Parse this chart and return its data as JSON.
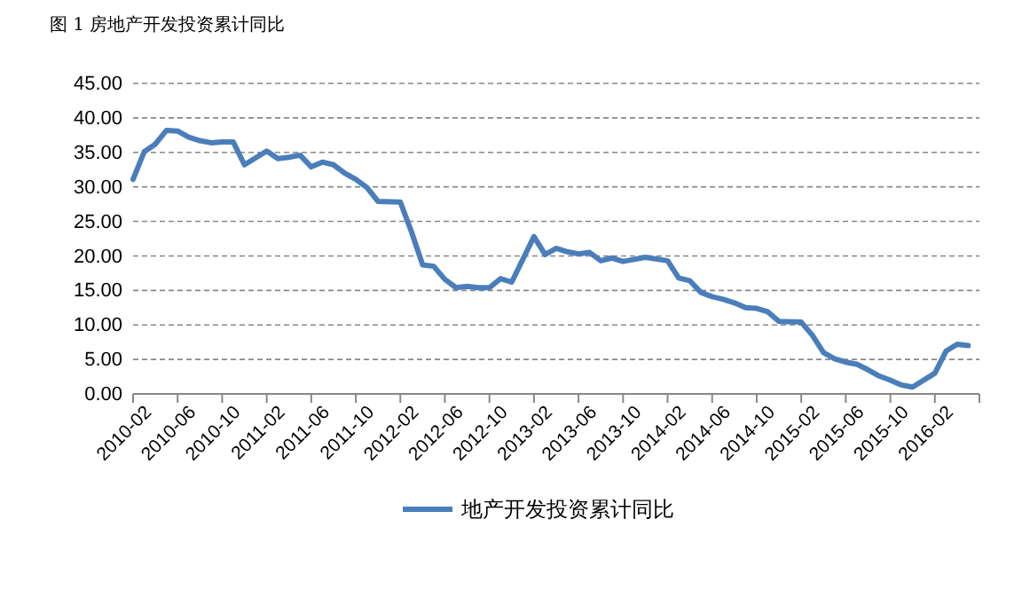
{
  "chart_data": {
    "type": "line",
    "title": "图 1 房地产开发投资累计同比",
    "x": [
      "2010-02",
      "2010-03",
      "2010-04",
      "2010-05",
      "2010-06",
      "2010-07",
      "2010-08",
      "2010-09",
      "2010-10",
      "2010-11",
      "2010-12",
      "2011-02",
      "2011-03",
      "2011-04",
      "2011-05",
      "2011-06",
      "2011-07",
      "2011-08",
      "2011-09",
      "2011-10",
      "2011-11",
      "2011-12",
      "2012-02",
      "2012-03",
      "2012-04",
      "2012-05",
      "2012-06",
      "2012-07",
      "2012-08",
      "2012-09",
      "2012-10",
      "2012-11",
      "2012-12",
      "2013-02",
      "2013-03",
      "2013-04",
      "2013-05",
      "2013-06",
      "2013-07",
      "2013-08",
      "2013-09",
      "2013-10",
      "2013-11",
      "2013-12",
      "2014-02",
      "2014-03",
      "2014-04",
      "2014-05",
      "2014-06",
      "2014-07",
      "2014-08",
      "2014-09",
      "2014-10",
      "2014-11",
      "2014-12",
      "2015-02",
      "2015-03",
      "2015-04",
      "2015-05",
      "2015-06",
      "2015-07",
      "2015-08",
      "2015-09",
      "2015-10",
      "2015-11",
      "2015-12",
      "2016-02",
      "2016-03",
      "2016-04",
      "2016-05"
    ],
    "series": [
      {
        "name": "地产开发投资累计同比",
        "color": "#4a7ebb",
        "values": [
          31.1,
          35.1,
          36.2,
          38.2,
          38.1,
          37.2,
          36.7,
          36.4,
          36.5,
          36.5,
          33.2,
          35.2,
          34.1,
          34.3,
          34.6,
          32.9,
          33.6,
          33.2,
          32.0,
          31.1,
          29.9,
          27.9,
          27.8,
          23.5,
          18.7,
          18.5,
          16.6,
          15.4,
          15.6,
          15.4,
          15.4,
          16.7,
          16.2,
          22.8,
          20.2,
          21.1,
          20.6,
          20.3,
          20.5,
          19.3,
          19.7,
          19.2,
          19.5,
          19.8,
          19.3,
          16.8,
          16.4,
          14.7,
          14.1,
          13.7,
          13.2,
          12.5,
          12.4,
          11.9,
          10.5,
          10.4,
          8.5,
          6.0,
          5.1,
          4.6,
          4.3,
          3.5,
          2.6,
          2.0,
          1.3,
          1.0,
          3.0,
          6.2,
          7.2,
          7.0
        ]
      }
    ],
    "xlim": [
      "2010-02",
      "2016-06"
    ],
    "xticks": [
      {
        "value": "2010-02",
        "label": "2010-02"
      },
      {
        "value": "2010-06",
        "label": "2010-06"
      },
      {
        "value": "2010-10",
        "label": "2010-10"
      },
      {
        "value": "2011-02",
        "label": "2011-02"
      },
      {
        "value": "2011-06",
        "label": "2011-06"
      },
      {
        "value": "2011-10",
        "label": "2011-10"
      },
      {
        "value": "2012-02",
        "label": "2012-02"
      },
      {
        "value": "2012-06",
        "label": "2012-06"
      },
      {
        "value": "2012-10",
        "label": "2012-10"
      },
      {
        "value": "2013-02",
        "label": "2013-02"
      },
      {
        "value": "2013-06",
        "label": "2013-06"
      },
      {
        "value": "2013-10",
        "label": "2013-10"
      },
      {
        "value": "2014-02",
        "label": "2014-02"
      },
      {
        "value": "2014-06",
        "label": "2014-06"
      },
      {
        "value": "2014-10",
        "label": "2014-10"
      },
      {
        "value": "2015-02",
        "label": "2015-02"
      },
      {
        "value": "2015-06",
        "label": "2015-06"
      },
      {
        "value": "2015-10",
        "label": "2015-10"
      },
      {
        "value": "2016-02",
        "label": "2016-02"
      },
      {
        "value": "2016-06",
        "label": null
      }
    ],
    "ylim": [
      0,
      45
    ],
    "yticks": [
      {
        "value": 0,
        "label": "0.00"
      },
      {
        "value": 5,
        "label": "5.00"
      },
      {
        "value": 10,
        "label": "10.00"
      },
      {
        "value": 15,
        "label": "15.00"
      },
      {
        "value": 20,
        "label": "20.00"
      },
      {
        "value": 25,
        "label": "25.00"
      },
      {
        "value": 30,
        "label": "30.00"
      },
      {
        "value": 35,
        "label": "35.00"
      },
      {
        "value": 40,
        "label": "40.00"
      },
      {
        "value": 45,
        "label": "45.00"
      }
    ],
    "grid": "y",
    "legend": "bottom",
    "marker": "none",
    "line_style": "solid"
  }
}
